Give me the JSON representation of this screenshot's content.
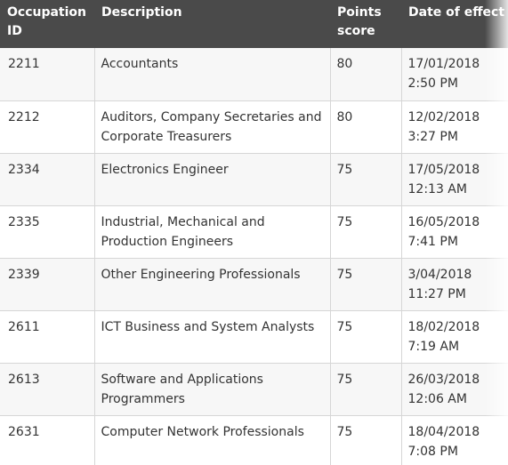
{
  "headers": {
    "occupation_id": "Occupation ID",
    "description": "Description",
    "points_score": "Points score",
    "date_of_effect": "Date of effect"
  },
  "rows": [
    {
      "id": "2211",
      "description": "Accountants",
      "points": "80",
      "date": "17/01/2018  2:50 PM"
    },
    {
      "id": "2212",
      "description": "Auditors, Company Secretaries and Corporate Treasurers",
      "points": "80",
      "date": "12/02/2018  3:27 PM"
    },
    {
      "id": "2334",
      "description": "Electronics Engineer",
      "points": "75",
      "date": "17/05/2018 12:13 AM"
    },
    {
      "id": "2335",
      "description": "Industrial, Mechanical and Production Engineers",
      "points": "75",
      "date": "16/05/2018  7:41 PM"
    },
    {
      "id": "2339",
      "description": "Other Engineering Professionals",
      "points": "75",
      "date": "3/04/2018  11:27 PM"
    },
    {
      "id": "2611",
      "description": "ICT Business and System Analysts",
      "points": "75",
      "date": "18/02/2018  7:19 AM"
    },
    {
      "id": "2613",
      "description": "Software and Applications Programmers",
      "points": "75",
      "date": "26/03/2018 12:06 AM"
    },
    {
      "id": "2631",
      "description": "Computer Network Professionals",
      "points": "75",
      "date": "18/04/2018  7:08 PM"
    }
  ]
}
